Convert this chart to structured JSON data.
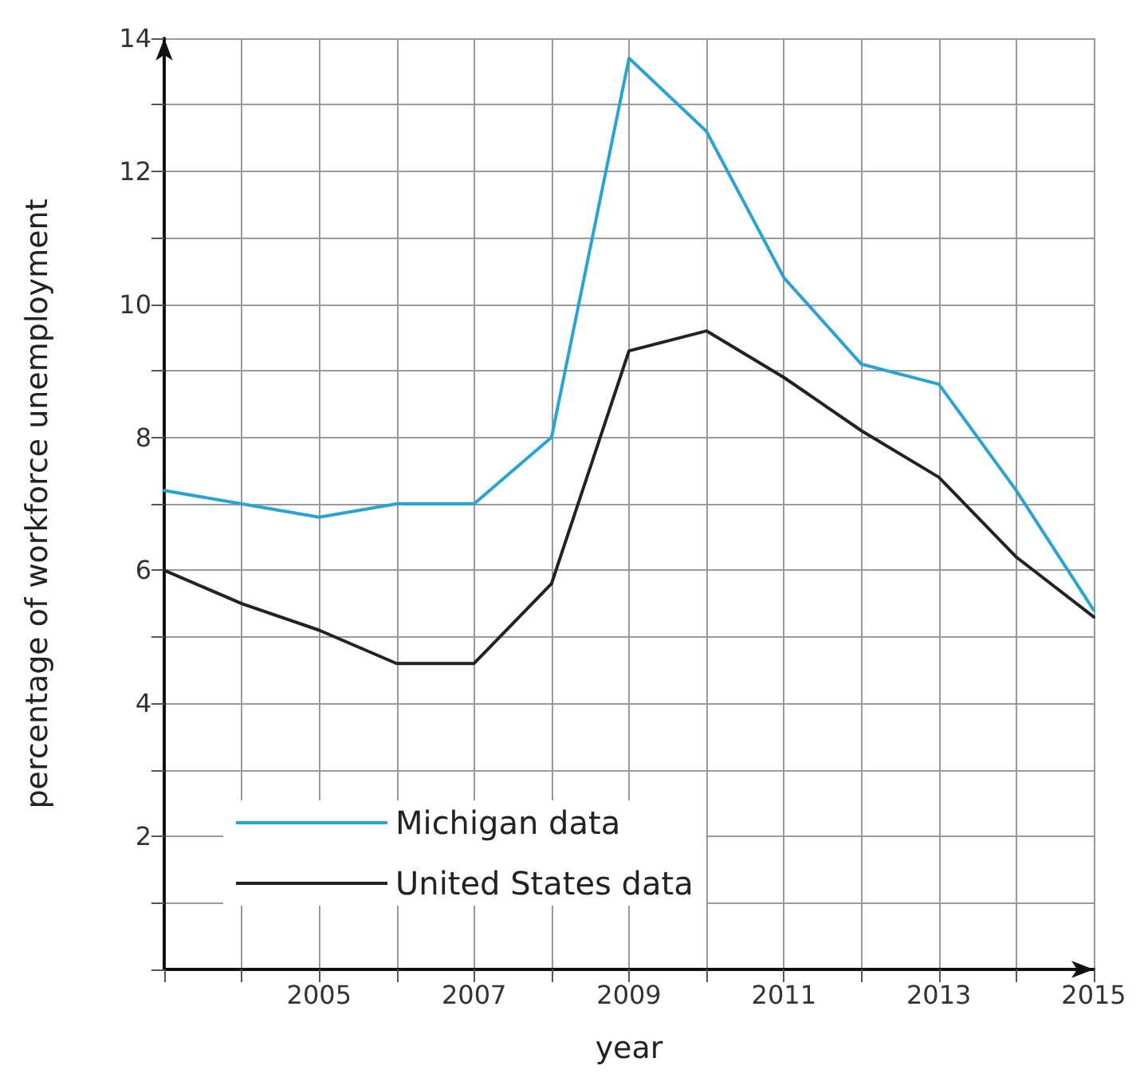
{
  "chart_data": {
    "type": "line",
    "xlabel": "year",
    "ylabel": "percentage of workforce unemployment",
    "x": [
      2003,
      2004,
      2005,
      2006,
      2007,
      2008,
      2009,
      2010,
      2011,
      2012,
      2013,
      2014,
      2015
    ],
    "series": [
      {
        "name": "Michigan data",
        "color": "#29a3d1",
        "values": [
          7.2,
          7.0,
          6.8,
          7.0,
          7.0,
          8.0,
          13.7,
          12.6,
          10.4,
          9.1,
          8.8,
          7.2,
          5.4
        ]
      },
      {
        "name": "United States data",
        "color": "#222222",
        "values": [
          6.0,
          5.5,
          5.1,
          4.6,
          4.6,
          5.8,
          9.3,
          9.6,
          8.9,
          8.1,
          7.4,
          6.2,
          5.3
        ]
      }
    ],
    "xlim": [
      2003,
      2015
    ],
    "xticks": [
      {
        "value": 2003,
        "label": null
      },
      {
        "value": 2004,
        "label": null
      },
      2005,
      {
        "value": 2006,
        "label": null
      },
      2007,
      {
        "value": 2008,
        "label": null
      },
      2009,
      {
        "value": 2010,
        "label": null
      },
      2011,
      {
        "value": 2012,
        "label": null
      },
      2013,
      {
        "value": 2014,
        "label": null
      },
      2015
    ],
    "ylim": [
      0,
      14
    ],
    "yticks": [
      {
        "value": 0,
        "label": null
      },
      {
        "value": 1,
        "label": null
      },
      2,
      {
        "value": 3,
        "label": null
      },
      4,
      {
        "value": 5,
        "label": null
      },
      6,
      {
        "value": 7,
        "label": null
      },
      8,
      {
        "value": 9,
        "label": null
      },
      10,
      {
        "value": 11,
        "label": null
      },
      12,
      {
        "value": 13,
        "label": null
      },
      14
    ],
    "grid": true,
    "legend": "bottom left",
    "marker": "none",
    "line_style": "solid"
  }
}
